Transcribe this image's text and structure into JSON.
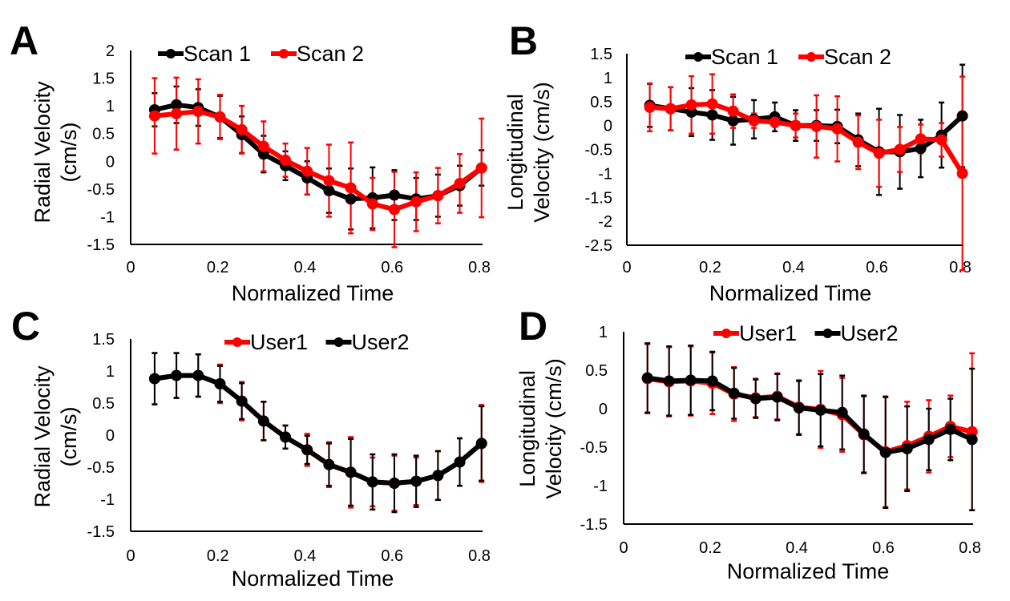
{
  "chart_data": [
    {
      "type": "line",
      "panel": "A",
      "title": "",
      "xlabel": "Normalized Time",
      "ylabel": [
        "Radial Velocity",
        "(cm/s)"
      ],
      "xlim": [
        0,
        0.8
      ],
      "ylim": [
        -1.5,
        2
      ],
      "xticks": [
        "0",
        "0.2",
        "0.4",
        "0.6",
        "0.8"
      ],
      "yticks": [
        "2",
        "1.5",
        "1",
        "0.5",
        "0",
        "-0.5",
        "-1",
        "-1.5"
      ],
      "legend_position": "top-center",
      "x": [
        0.055,
        0.105,
        0.155,
        0.205,
        0.255,
        0.305,
        0.355,
        0.405,
        0.455,
        0.505,
        0.555,
        0.605,
        0.655,
        0.705,
        0.755,
        0.805
      ],
      "series": [
        {
          "name": "Scan 1",
          "color": "#000000",
          "values": [
            0.93,
            1.02,
            0.97,
            0.8,
            0.48,
            0.13,
            -0.08,
            -0.3,
            -0.53,
            -0.68,
            -0.66,
            -0.61,
            -0.68,
            -0.62,
            -0.44,
            -0.12
          ],
          "error": [
            0.3,
            0.33,
            0.33,
            0.38,
            0.33,
            0.33,
            0.26,
            0.3,
            0.4,
            0.55,
            0.55,
            0.45,
            0.38,
            0.38,
            0.36,
            0.32
          ]
        },
        {
          "name": "Scan 2",
          "color": "#ff0000",
          "values": [
            0.82,
            0.86,
            0.9,
            0.8,
            0.57,
            0.27,
            0.02,
            -0.18,
            -0.35,
            -0.48,
            -0.77,
            -0.87,
            -0.73,
            -0.62,
            -0.4,
            -0.12
          ],
          "error": [
            0.68,
            0.65,
            0.58,
            0.4,
            0.43,
            0.45,
            0.3,
            0.42,
            0.65,
            0.82,
            0.47,
            0.68,
            0.53,
            0.5,
            0.53,
            0.89
          ]
        }
      ]
    },
    {
      "type": "line",
      "panel": "B",
      "title": "",
      "xlabel": "Normalized Time",
      "ylabel": [
        "Longitudinal",
        "Velocity (cm/s)"
      ],
      "xlim": [
        0,
        0.8
      ],
      "ylim": [
        -2.5,
        1.5
      ],
      "xticks": [
        "0",
        "0.2",
        "0.4",
        "0.6",
        "0.8"
      ],
      "yticks": [
        "1.5",
        "1",
        "0.5",
        "0",
        "-0.5",
        "-1",
        "-1.5",
        "-2",
        "-2.5"
      ],
      "legend_position": "top-center",
      "x": [
        0.055,
        0.105,
        0.155,
        0.205,
        0.255,
        0.305,
        0.355,
        0.405,
        0.455,
        0.505,
        0.555,
        0.605,
        0.655,
        0.705,
        0.755,
        0.805
      ],
      "series": [
        {
          "name": "Scan 1",
          "color": "#000000",
          "values": [
            0.42,
            0.35,
            0.28,
            0.22,
            0.1,
            0.13,
            0.18,
            0.0,
            0.0,
            -0.02,
            -0.3,
            -0.55,
            -0.55,
            -0.48,
            -0.2,
            0.2
          ],
          "error": [
            0.45,
            0.45,
            0.5,
            0.52,
            0.5,
            0.4,
            0.3,
            0.32,
            0.32,
            0.35,
            0.55,
            0.9,
            0.77,
            0.6,
            0.68,
            1.07
          ]
        },
        {
          "name": "Scan 2",
          "color": "#ff0000",
          "values": [
            0.38,
            0.35,
            0.43,
            0.45,
            0.3,
            0.1,
            0.07,
            0.0,
            -0.02,
            -0.07,
            -0.35,
            -0.58,
            -0.5,
            -0.28,
            -0.3,
            -1.0
          ],
          "error": [
            0.5,
            0.45,
            0.6,
            0.62,
            0.35,
            0.15,
            0.1,
            0.25,
            0.65,
            0.68,
            0.56,
            0.7,
            0.47,
            0.3,
            0.35,
            2.02
          ]
        }
      ]
    },
    {
      "type": "line",
      "panel": "C",
      "title": "",
      "xlabel": "Normalized Time",
      "ylabel": [
        "Radial Velocity",
        "(cm/s)"
      ],
      "xlim": [
        0,
        0.8
      ],
      "ylim": [
        -1.5,
        1.5
      ],
      "xticks": [
        "0",
        "0.2",
        "0.4",
        "0.6",
        "0.8"
      ],
      "yticks": [
        "1.5",
        "1",
        "0.5",
        "0",
        "-0.5",
        "-1",
        "-1.5"
      ],
      "legend_position": "top-center",
      "x": [
        0.055,
        0.105,
        0.155,
        0.205,
        0.255,
        0.305,
        0.355,
        0.405,
        0.455,
        0.505,
        0.555,
        0.605,
        0.655,
        0.705,
        0.755,
        0.805
      ],
      "series": [
        {
          "name": "User1",
          "color": "#ff0000",
          "values": [
            0.88,
            0.93,
            0.93,
            0.8,
            0.53,
            0.22,
            -0.03,
            -0.23,
            -0.46,
            -0.58,
            -0.73,
            -0.75,
            -0.72,
            -0.63,
            -0.42,
            -0.13
          ],
          "error": [
            0.4,
            0.35,
            0.33,
            0.3,
            0.3,
            0.3,
            0.18,
            0.25,
            0.35,
            0.55,
            0.38,
            0.43,
            0.37,
            0.38,
            0.37,
            0.6
          ]
        },
        {
          "name": "User2",
          "color": "#000000",
          "values": [
            0.88,
            0.93,
            0.93,
            0.8,
            0.53,
            0.22,
            -0.03,
            -0.23,
            -0.46,
            -0.58,
            -0.73,
            -0.75,
            -0.72,
            -0.63,
            -0.42,
            -0.13
          ],
          "error": [
            0.4,
            0.35,
            0.33,
            0.28,
            0.28,
            0.3,
            0.18,
            0.22,
            0.33,
            0.52,
            0.43,
            0.45,
            0.4,
            0.38,
            0.37,
            0.58
          ]
        }
      ]
    },
    {
      "type": "line",
      "panel": "D",
      "title": "",
      "xlabel": "Normalized Time",
      "ylabel": [
        "Longitudinal",
        "Velocity (cm/s)"
      ],
      "xlim": [
        0,
        0.8
      ],
      "ylim": [
        -1.5,
        1
      ],
      "xticks": [
        "0",
        "0.2",
        "0.4",
        "0.6",
        "0.8"
      ],
      "yticks": [
        "1",
        "0.5",
        "0",
        "-0.5",
        "-1",
        "-1.5"
      ],
      "legend_position": "top-center",
      "x": [
        0.055,
        0.105,
        0.155,
        0.205,
        0.255,
        0.305,
        0.355,
        0.405,
        0.455,
        0.505,
        0.555,
        0.605,
        0.655,
        0.705,
        0.755,
        0.805
      ],
      "series": [
        {
          "name": "User1",
          "color": "#ff0000",
          "values": [
            0.39,
            0.35,
            0.36,
            0.33,
            0.19,
            0.14,
            0.16,
            0.02,
            -0.01,
            -0.08,
            -0.34,
            -0.56,
            -0.48,
            -0.36,
            -0.23,
            -0.3
          ],
          "error": [
            0.45,
            0.45,
            0.45,
            0.4,
            0.35,
            0.25,
            0.3,
            0.35,
            0.5,
            0.48,
            0.5,
            0.72,
            0.57,
            0.47,
            0.4,
            1.02
          ]
        },
        {
          "name": "User2",
          "color": "#000000",
          "values": [
            0.4,
            0.36,
            0.37,
            0.36,
            0.2,
            0.13,
            0.15,
            0.01,
            -0.02,
            -0.05,
            -0.33,
            -0.57,
            -0.52,
            -0.4,
            -0.27,
            -0.4
          ],
          "error": [
            0.45,
            0.45,
            0.45,
            0.38,
            0.33,
            0.25,
            0.3,
            0.35,
            0.47,
            0.48,
            0.5,
            0.72,
            0.55,
            0.4,
            0.4,
            0.92
          ]
        }
      ]
    }
  ],
  "panels": {
    "A": {
      "letter": "A",
      "legend": [
        "Scan 1",
        "Scan 2"
      ]
    },
    "B": {
      "letter": "B",
      "legend": [
        "Scan 1",
        "Scan 2"
      ]
    },
    "C": {
      "letter": "C",
      "legend": [
        "User1",
        "User2"
      ]
    },
    "D": {
      "letter": "D",
      "legend": [
        "User1",
        "User2"
      ]
    }
  }
}
